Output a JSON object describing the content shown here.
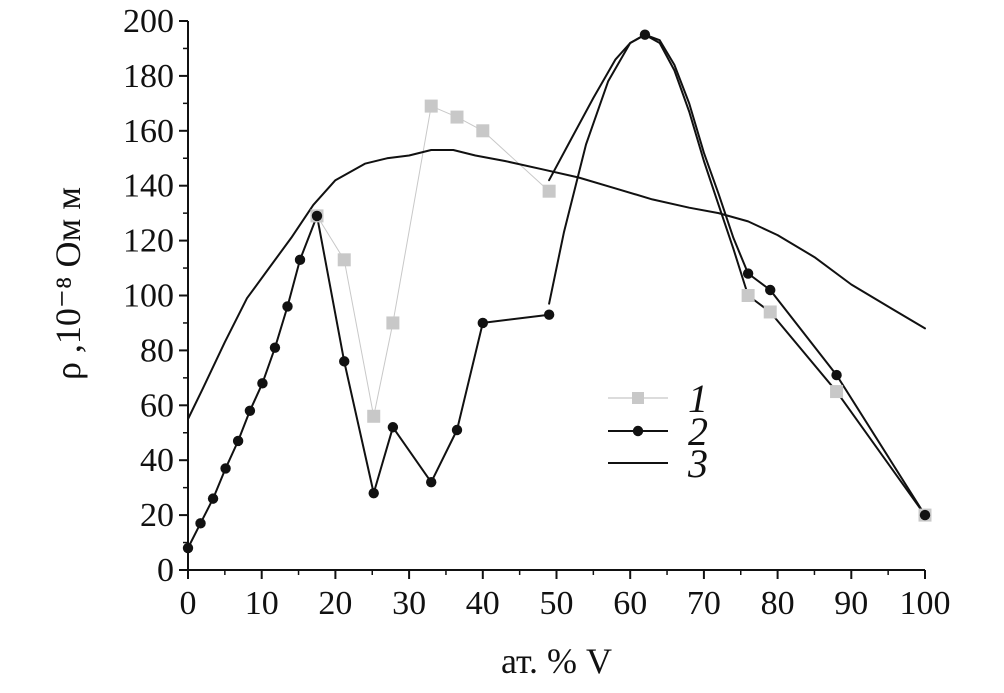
{
  "chart_data": {
    "type": "line",
    "title": "",
    "xlabel": "ат. % V",
    "ylabel": "ρ ,10⁻⁸ Ом м",
    "xlim": [
      0,
      100
    ],
    "ylim": [
      0,
      200
    ],
    "x_ticks": [
      "0",
      "10",
      "20",
      "30",
      "40",
      "50",
      "60",
      "70",
      "80",
      "90",
      "100"
    ],
    "y_ticks": [
      "0",
      "20",
      "40",
      "60",
      "80",
      "100",
      "120",
      "140",
      "160",
      "180",
      "200"
    ],
    "grid": false,
    "legend_position": "center-right",
    "series": [
      {
        "name": "1",
        "marker": "square",
        "color": "#c8c8c8",
        "style": "thin-gray-line-with-markers",
        "points": [
          [
            0,
            8
          ],
          [
            1.7,
            17
          ],
          [
            3.4,
            26
          ],
          [
            5.1,
            37
          ],
          [
            6.8,
            47
          ],
          [
            8.4,
            58
          ],
          [
            10.1,
            68
          ],
          [
            11.8,
            81
          ],
          [
            13.5,
            96
          ],
          [
            15.2,
            113
          ],
          [
            17.5,
            129
          ],
          [
            21.2,
            113
          ],
          [
            25.2,
            56
          ],
          [
            27.8,
            90
          ],
          [
            33.0,
            169
          ],
          [
            36.5,
            165
          ],
          [
            40.0,
            160
          ],
          [
            49.0,
            138
          ]
        ]
      },
      {
        "name": "2",
        "marker": "circle",
        "color": "#111111",
        "style": "black-line-with-markers",
        "points": [
          [
            0,
            8
          ],
          [
            1.7,
            17
          ],
          [
            3.4,
            26
          ],
          [
            5.1,
            37
          ],
          [
            6.8,
            47
          ],
          [
            8.4,
            58
          ],
          [
            10.1,
            68
          ],
          [
            11.8,
            81
          ],
          [
            13.5,
            96
          ],
          [
            15.2,
            113
          ],
          [
            17.5,
            129
          ],
          [
            21.2,
            76
          ],
          [
            25.2,
            28
          ],
          [
            27.8,
            52
          ],
          [
            33.0,
            32
          ],
          [
            36.5,
            51
          ],
          [
            40.0,
            90
          ],
          [
            49.0,
            93
          ]
        ]
      },
      {
        "name": "3",
        "marker": "none",
        "color": "#111111",
        "style": "smooth-black-line",
        "points": [
          [
            0,
            55
          ],
          [
            2,
            66
          ],
          [
            5,
            83
          ],
          [
            8,
            99
          ],
          [
            11,
            110
          ],
          [
            14,
            121
          ],
          [
            17,
            133
          ],
          [
            20,
            142
          ],
          [
            24,
            148
          ],
          [
            27,
            150
          ],
          [
            30,
            151
          ],
          [
            33,
            153
          ],
          [
            36,
            153
          ],
          [
            39,
            151
          ],
          [
            43,
            149
          ],
          [
            48,
            146
          ],
          [
            53,
            143
          ],
          [
            58,
            139
          ],
          [
            63,
            135
          ],
          [
            68,
            132
          ],
          [
            72,
            130
          ],
          [
            76,
            127
          ],
          [
            80,
            122
          ],
          [
            85,
            114
          ],
          [
            90,
            104
          ],
          [
            95,
            96
          ],
          [
            100,
            88
          ]
        ]
      }
    ],
    "unlabeled_curves": [
      {
        "color": "#111111",
        "points": [
          [
            49.0,
            142
          ],
          [
            52,
            157
          ],
          [
            55,
            172
          ],
          [
            58,
            186
          ],
          [
            60,
            192
          ],
          [
            62,
            195
          ],
          [
            64,
            192
          ],
          [
            66,
            182
          ],
          [
            68,
            167
          ],
          [
            70,
            149
          ],
          [
            72,
            133
          ],
          [
            74,
            117
          ],
          [
            76,
            100
          ],
          [
            79,
            94
          ],
          [
            88,
            65
          ],
          [
            100,
            20
          ]
        ]
      },
      {
        "color": "#111111",
        "points": [
          [
            49.0,
            97
          ],
          [
            51,
            123
          ],
          [
            54,
            155
          ],
          [
            57,
            178
          ],
          [
            60,
            192
          ],
          [
            62,
            195
          ],
          [
            64,
            193
          ],
          [
            66,
            184
          ],
          [
            68,
            170
          ],
          [
            70,
            152
          ],
          [
            72,
            137
          ],
          [
            74,
            121
          ],
          [
            76,
            108
          ],
          [
            79,
            102
          ],
          [
            88,
            71
          ],
          [
            100,
            20
          ]
        ]
      }
    ]
  }
}
